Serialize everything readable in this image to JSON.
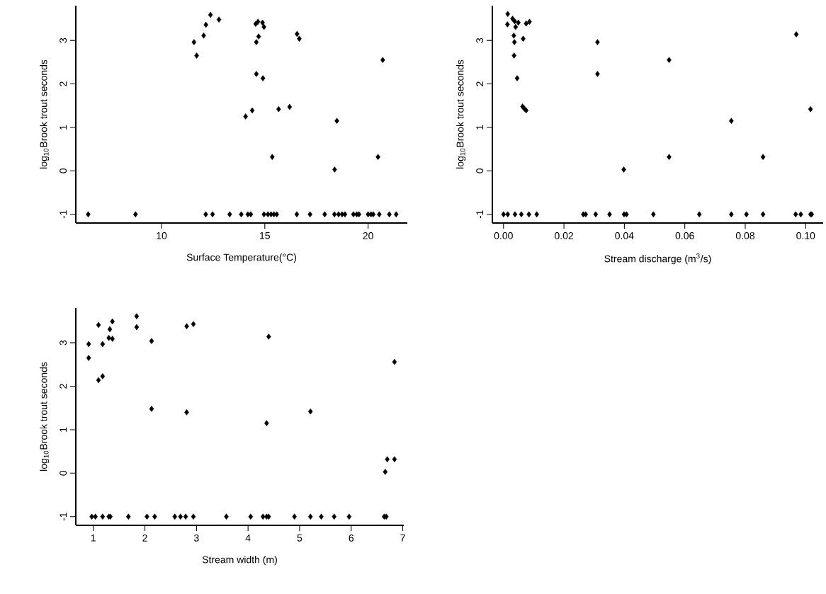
{
  "chart_data": [
    {
      "type": "scatter",
      "xlabel": "Surface Temperature(°C)",
      "ylabel": "log$_{10}$Brook trout seconds",
      "marker": "diamond",
      "xlim": [
        5.85,
        21.9
      ],
      "ylim": [
        -1.2,
        3.8
      ],
      "xticks": [
        10,
        15,
        20
      ],
      "yticks": [
        -1,
        0,
        1,
        2,
        3
      ],
      "series": [
        {
          "color": "#000000",
          "x": [
            11.57,
            11.7,
            12.04,
            12.15,
            12.37,
            12.78,
            14.56,
            14.67,
            14.89,
            14.96,
            14.7,
            14.59,
            14.59,
            14.91,
            14.07,
            14.39,
            15.67,
            16.2,
            16.56,
            16.67,
            20.71,
            18.49,
            15.36,
            18.38,
            20.48,
            6.45,
            8.74,
            12.14,
            12.47,
            13.3,
            13.86,
            14.18,
            14.32,
            14.96,
            15.15,
            15.3,
            15.44,
            15.58,
            16.55,
            17.19,
            17.9,
            18.37,
            18.57,
            18.74,
            18.88,
            19.29,
            19.45,
            19.56,
            20.0,
            20.14,
            20.25,
            20.54,
            21.03,
            21.36
          ],
          "values": [
            2.96,
            2.65,
            3.11,
            3.36,
            3.59,
            3.48,
            3.38,
            3.43,
            3.41,
            3.31,
            3.09,
            2.96,
            2.23,
            2.13,
            1.25,
            1.39,
            1.42,
            1.47,
            3.15,
            3.04,
            2.55,
            1.15,
            0.32,
            0.03,
            0.32,
            -1,
            -1,
            -1,
            -1,
            -1,
            -1,
            -1,
            -1,
            -1,
            -1,
            -1,
            -1,
            -1,
            -1,
            -1,
            -1,
            -1,
            -1,
            -1,
            -1,
            -1,
            -1,
            -1,
            -1,
            -1,
            -1,
            -1,
            -1,
            -1
          ]
        }
      ]
    },
    {
      "type": "scatter",
      "xlabel": "Stream discharge (m$^{3}$/s)",
      "ylabel": "log$_{10}$Brook trout seconds",
      "marker": "diamond",
      "xlim": [
        -0.0037,
        0.1058
      ],
      "ylim": [
        -1.2,
        3.8
      ],
      "xticks": [
        {
          "value": 0,
          "label": "0.00"
        },
        {
          "value": 0.02,
          "label": "0.02"
        },
        {
          "value": 0.04,
          "label": "0.04"
        },
        {
          "value": 0.06,
          "label": "0.06"
        },
        {
          "value": 0.08,
          "label": "0.08"
        },
        {
          "value": 0.1,
          "label": "0.10"
        }
      ],
      "yticks": [
        -1,
        0,
        1,
        2,
        3
      ],
      "series": [
        {
          "color": "#000000",
          "x": [
            0.0014,
            0.0013,
            0.003,
            0.0037,
            0.0049,
            0.004,
            0.0034,
            0.0036,
            0.0035,
            0.0045,
            0.0065,
            0.0075,
            0.0086,
            0.0063,
            0.0069,
            0.0075,
            0.0311,
            0.0311,
            0.0398,
            0.0548,
            0.0548,
            0.0754,
            0.0859,
            0.0969,
            0.1016,
            0.0,
            0.0014,
            0.0038,
            0.0059,
            0.0084,
            0.011,
            0.0264,
            0.0272,
            0.0305,
            0.0351,
            0.0399,
            0.0407,
            0.0496,
            0.0648,
            0.0754,
            0.0804,
            0.0859,
            0.0967,
            0.0984,
            0.1016,
            0.102
          ],
          "values": [
            3.61,
            3.37,
            3.5,
            3.44,
            3.41,
            3.31,
            3.11,
            2.96,
            2.65,
            2.13,
            3.04,
            3.39,
            3.43,
            1.48,
            1.43,
            1.39,
            2.96,
            2.23,
            0.03,
            2.55,
            0.32,
            1.15,
            0.32,
            3.14,
            1.42,
            -1,
            -1,
            -1,
            -1,
            -1,
            -1,
            -1,
            -1,
            -1,
            -1,
            -1,
            -1,
            -1,
            -1,
            -1,
            -1,
            -1,
            -1,
            -1,
            -1,
            -1
          ]
        }
      ]
    },
    {
      "type": "scatter",
      "xlabel": "Stream width (m)",
      "ylabel": "log$_{10}$Brook trout seconds",
      "marker": "diamond",
      "xlim": [
        0.66,
        7.02
      ],
      "ylim": [
        -1.2,
        3.8
      ],
      "xticks": [
        1,
        2,
        3,
        4,
        5,
        6,
        7
      ],
      "yticks": [
        -1,
        0,
        1,
        2,
        3
      ],
      "series": [
        {
          "color": "#000000",
          "x": [
            0.91,
            0.91,
            1.1,
            1.18,
            1.1,
            1.18,
            1.32,
            1.3,
            1.37,
            1.37,
            1.84,
            1.84,
            2.13,
            2.13,
            2.81,
            2.94,
            2.81,
            4.4,
            4.36,
            5.21,
            6.84,
            6.7,
            6.84,
            6.66,
            0.97,
            1.04,
            1.18,
            1.3,
            1.33,
            1.68,
            2.04,
            2.19,
            2.58,
            2.69,
            2.79,
            2.94,
            3.58,
            4.05,
            4.29,
            4.36,
            4.4,
            4.9,
            5.21,
            5.42,
            5.67,
            5.96,
            6.64,
            6.68
          ],
          "values": [
            2.97,
            2.65,
            3.41,
            2.97,
            2.14,
            2.23,
            3.31,
            3.11,
            3.09,
            3.49,
            3.61,
            3.36,
            3.04,
            1.48,
            3.38,
            3.43,
            1.4,
            3.14,
            1.15,
            1.42,
            2.56,
            0.32,
            0.32,
            0.03,
            -1,
            -1,
            -1,
            -1,
            -1,
            -1,
            -1,
            -1,
            -1,
            -1,
            -1,
            -1,
            -1,
            -1,
            -1,
            -1,
            -1,
            -1,
            -1,
            -1,
            -1,
            -1,
            -1,
            -1
          ]
        }
      ]
    }
  ]
}
